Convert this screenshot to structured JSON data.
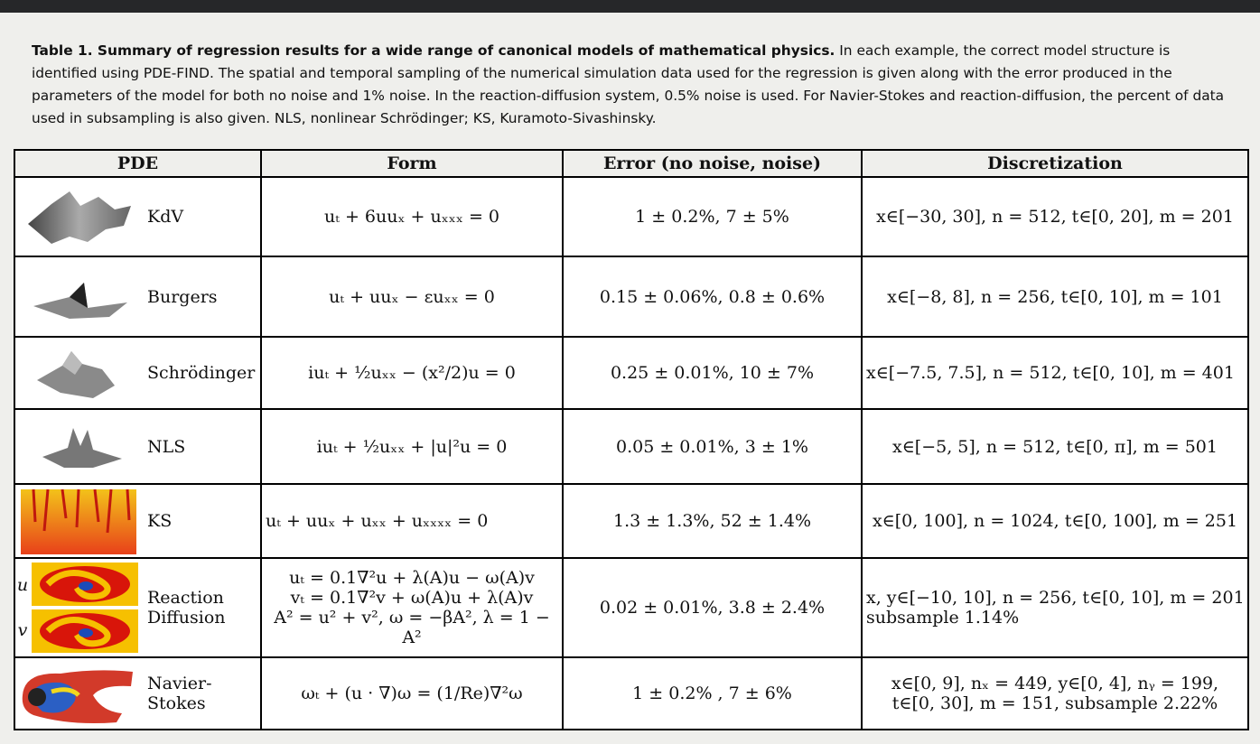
{
  "caption": {
    "title": "Table 1. Summary of regression results for a wide range of canonical models of mathematical physics.",
    "text": "In each example, the correct model structure is identified using PDE-FIND. The spatial and temporal sampling of the numerical simulation data used for the regression is given along with the error produced in the parameters of the model for both no noise and 1% noise. In the reaction-diffusion system, 0.5% noise is used. For Navier-Stokes and reaction-diffusion, the percent of data used in subsampling is also given. NLS, nonlinear Schrödinger; KS, Kuramoto-Sivashinsky."
  },
  "table": {
    "header": [
      "PDE",
      "Form",
      "Error (no noise, noise)",
      "Discretization"
    ],
    "rows": [
      {
        "name": [
          "KdV"
        ],
        "form": [
          "uₜ + 6uuₓ + uₓₓₓ = 0"
        ],
        "error": "1 ± 0.2%, 7 ± 5%",
        "discretization": [
          "x∈[−30, 30], n = 512, t∈[0, 20], m = 201"
        ]
      },
      {
        "name": [
          "Burgers"
        ],
        "form": [
          "uₜ + uuₓ − εuₓₓ = 0"
        ],
        "error": "0.15 ± 0.06%, 0.8 ± 0.6%",
        "discretization": [
          "x∈[−8, 8], n = 256, t∈[0, 10], m = 101"
        ]
      },
      {
        "name": [
          "Schrödinger"
        ],
        "form": [
          "iuₜ + ½uₓₓ − (x²/2)u = 0"
        ],
        "error": "0.25 ± 0.01%, 10 ± 7%",
        "discretization": [
          "x∈[−7.5, 7.5], n = 512, t∈[0, 10], m = 401"
        ]
      },
      {
        "name": [
          "NLS"
        ],
        "form": [
          "iuₜ + ½uₓₓ + |u|²u = 0"
        ],
        "error": "0.05 ± 0.01%, 3 ± 1%",
        "discretization": [
          "x∈[−5, 5], n = 512, t∈[0, π], m = 501"
        ]
      },
      {
        "name": [
          "KS"
        ],
        "form": [
          "uₜ + uuₓ + uₓₓ + uₓₓₓₓ = 0"
        ],
        "error": "1.3 ± 1.3%, 52 ± 1.4%",
        "discretization": [
          "x∈[0, 100], n = 1024, t∈[0, 100], m = 251"
        ]
      },
      {
        "name": [
          "Reaction",
          "Diffusion"
        ],
        "image_labels": [
          "u",
          "v"
        ],
        "form": [
          "uₜ = 0.1∇²u + λ(A)u − ω(A)v",
          "vₜ = 0.1∇²v + ω(A)u + λ(A)v",
          "A² = u² + v², ω = −βA², λ = 1 − A²"
        ],
        "error": "0.02 ± 0.01%, 3.8 ± 2.4%",
        "discretization": [
          "x, y∈[−10, 10], n = 256, t∈[0, 10], m = 201",
          "subsample 1.14%"
        ]
      },
      {
        "name": [
          "Navier-",
          "Stokes"
        ],
        "form": [
          "ωₜ + (u · ∇)ω = (1/Re)∇²ω"
        ],
        "error": "1 ± 0.2% , 7 ± 6%",
        "discretization": [
          "x∈[0, 9], nₓ = 449, y∈[0, 4], nᵧ = 199,",
          "t∈[0, 30], m = 151, subsample 2.22%"
        ]
      }
    ]
  }
}
